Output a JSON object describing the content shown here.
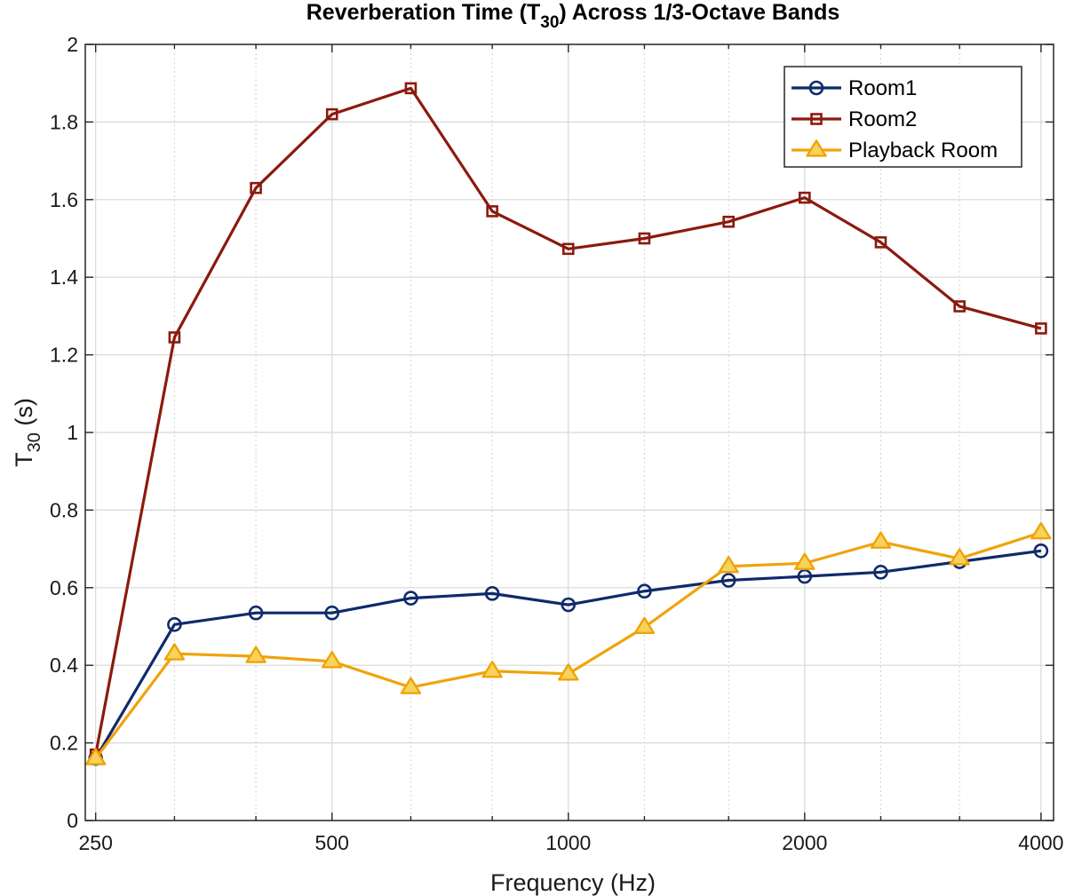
{
  "chart_data": {
    "type": "line",
    "title": {
      "main": "Reverberation Time (T",
      "sub": "30",
      "after": ") Across 1/3-Octave Bands"
    },
    "xlabel": "Frequency (Hz)",
    "ylabel": {
      "main": "T",
      "sub": "30",
      "after": " (s)"
    },
    "x_scale": "log2",
    "xlim": [
      242.5,
      4150
    ],
    "ylim": [
      0,
      2
    ],
    "x_ticks": [
      250,
      500,
      1000,
      2000,
      4000
    ],
    "x_tick_labels": [
      "250",
      "500",
      "1000",
      "2000",
      "4000"
    ],
    "y_ticks": [
      0,
      0.2,
      0.4,
      0.6,
      0.8,
      1,
      1.2,
      1.4,
      1.6,
      1.8,
      2
    ],
    "y_tick_labels": [
      "0",
      "0.2",
      "0.4",
      "0.6",
      "0.8",
      "1",
      "1.2",
      "1.4",
      "1.6",
      "1.8",
      "2"
    ],
    "grid": true,
    "legend_position": "top-right",
    "x": [
      250,
      315,
      400,
      500,
      630,
      800,
      1000,
      1250,
      1600,
      2000,
      2500,
      3150,
      4000
    ],
    "series": [
      {
        "name": "Room1",
        "color": "#0f2a6b",
        "marker": "circle",
        "values": [
          0.16,
          0.505,
          0.535,
          0.535,
          0.573,
          0.585,
          0.556,
          0.591,
          0.619,
          0.629,
          0.64,
          0.667,
          0.695
        ]
      },
      {
        "name": "Room2",
        "color": "#8b1a0e",
        "marker": "square",
        "values": [
          0.17,
          1.245,
          1.63,
          1.82,
          1.887,
          1.57,
          1.473,
          1.5,
          1.543,
          1.605,
          1.49,
          1.325,
          1.268
        ]
      },
      {
        "name": "Playback Room",
        "color": "#f0a30a",
        "marker": "triangle",
        "values": [
          0.16,
          0.43,
          0.423,
          0.41,
          0.343,
          0.385,
          0.378,
          0.498,
          0.655,
          0.663,
          0.718,
          0.675,
          0.742
        ]
      }
    ]
  }
}
